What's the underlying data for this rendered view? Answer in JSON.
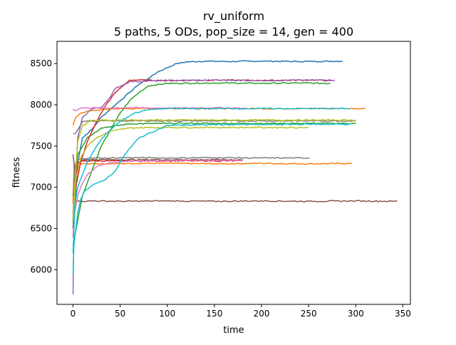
{
  "chart_data": {
    "type": "line",
    "title_line1": "rv_uniform",
    "title_line2": "5 paths, 5 ODs, pop_size = 14, gen = 400",
    "xlabel": "time",
    "ylabel": "fitness",
    "xlim": [
      -17,
      358
    ],
    "ylim": [
      5580,
      8770
    ],
    "xticks": [
      0,
      50,
      100,
      150,
      200,
      250,
      300,
      350
    ],
    "yticks": [
      6000,
      6500,
      7000,
      7500,
      8000,
      8500
    ],
    "grid": false,
    "legend": "none",
    "series": [
      {
        "color": "#1f77b4",
        "x": [
          0,
          5,
          10,
          20,
          30,
          40,
          50,
          60,
          70,
          80,
          90,
          100,
          110,
          120,
          140,
          160,
          200,
          240,
          286
        ],
        "y": [
          6400,
          7300,
          7600,
          7700,
          7850,
          7950,
          8050,
          8150,
          8250,
          8320,
          8400,
          8450,
          8500,
          8520,
          8530,
          8525,
          8530,
          8525,
          8530
        ]
      },
      {
        "color": "#ff7f0e",
        "x": [
          0,
          1,
          3,
          5,
          10,
          20,
          40,
          60,
          100,
          150,
          200,
          250,
          296
        ],
        "y": [
          6800,
          7250,
          7280,
          7290,
          7285,
          7290,
          7285,
          7290,
          7290,
          7285,
          7290,
          7285,
          7290
        ]
      },
      {
        "color": "#ff7f0e",
        "x": [
          0,
          3,
          8,
          20,
          40,
          70,
          100,
          150,
          200,
          250,
          310
        ],
        "y": [
          7750,
          7850,
          7900,
          7930,
          7950,
          7955,
          7955,
          7955,
          7955,
          7955,
          7955
        ]
      },
      {
        "color": "#2ca02c",
        "x": [
          0,
          5,
          10,
          20,
          30,
          40,
          50,
          60,
          70,
          80,
          100,
          150,
          200,
          240,
          273
        ],
        "y": [
          6300,
          6600,
          6900,
          7200,
          7500,
          7700,
          7900,
          8050,
          8150,
          8230,
          8260,
          8265,
          8260,
          8265,
          8260
        ]
      },
      {
        "color": "#2ca02c",
        "x": [
          0,
          5,
          15,
          30,
          60,
          100,
          150,
          200,
          250,
          300
        ],
        "y": [
          6900,
          7400,
          7600,
          7720,
          7770,
          7775,
          7775,
          7775,
          7775,
          7775
        ]
      },
      {
        "color": "#d62728",
        "x": [
          0,
          3,
          8,
          15,
          25,
          35,
          45,
          55,
          60,
          70,
          100,
          150,
          200,
          250,
          275
        ],
        "y": [
          6700,
          7000,
          7300,
          7550,
          7800,
          8000,
          8150,
          8250,
          8300,
          8300,
          8295,
          8300,
          8295,
          8300,
          8295
        ]
      },
      {
        "color": "#d62728",
        "x": [
          0,
          2,
          5,
          10,
          20,
          50,
          100,
          150,
          180
        ],
        "y": [
          6500,
          7000,
          7300,
          7320,
          7320,
          7320,
          7320,
          7320,
          7320
        ]
      },
      {
        "color": "#9467bd",
        "x": [
          0,
          1,
          2,
          5,
          10,
          20,
          30,
          40,
          45,
          60,
          100,
          150,
          200,
          250,
          278
        ],
        "y": [
          5700,
          6600,
          6900,
          7600,
          7850,
          7950,
          7970,
          8100,
          8200,
          8280,
          8295,
          8300,
          8295,
          8300,
          8300
        ]
      },
      {
        "color": "#8c564b",
        "x": [
          0,
          1,
          3,
          5,
          10,
          20,
          50,
          100,
          150,
          200,
          250,
          300,
          344
        ],
        "y": [
          6600,
          7000,
          6850,
          6830,
          6830,
          6835,
          6830,
          6835,
          6830,
          6835,
          6830,
          6835,
          6830
        ]
      },
      {
        "color": "#8c564b",
        "x": [
          0,
          2,
          5,
          10,
          15,
          50,
          100,
          150,
          180
        ],
        "y": [
          7400,
          7200,
          7300,
          7330,
          7335,
          7335,
          7335,
          7335,
          7335
        ]
      },
      {
        "color": "#e377c2",
        "x": [
          0,
          1,
          3,
          5,
          8,
          15,
          30,
          60,
          100,
          150,
          180
        ],
        "y": [
          7950,
          7935,
          7930,
          7940,
          7960,
          7965,
          7960,
          7965,
          7960,
          7965,
          7960
        ]
      },
      {
        "color": "#e377c2",
        "x": [
          0,
          2,
          5,
          10,
          15,
          25,
          40,
          60,
          100,
          150,
          180
        ],
        "y": [
          6400,
          6700,
          6900,
          7050,
          7150,
          7250,
          7300,
          7320,
          7325,
          7325,
          7325
        ]
      },
      {
        "color": "#7f7f7f",
        "x": [
          0,
          1,
          3,
          6,
          10,
          20,
          40,
          60,
          100,
          150,
          200,
          250,
          251
        ],
        "y": [
          6500,
          7100,
          7300,
          7340,
          7350,
          7355,
          7355,
          7360,
          7355,
          7360,
          7355,
          7355,
          7355
        ]
      },
      {
        "color": "#7f7f7f",
        "x": [
          0,
          3,
          10,
          20,
          50,
          100,
          150,
          200,
          250,
          300
        ],
        "y": [
          7650,
          7660,
          7800,
          7805,
          7805,
          7805,
          7805,
          7805,
          7805,
          7805
        ]
      },
      {
        "color": "#bcbd22",
        "x": [
          0,
          3,
          8,
          15,
          25,
          40,
          60,
          80,
          100,
          150,
          200,
          250
        ],
        "y": [
          6600,
          7100,
          7350,
          7500,
          7600,
          7680,
          7720,
          7725,
          7725,
          7725,
          7725,
          7725
        ]
      },
      {
        "color": "#bcbd22",
        "x": [
          0,
          5,
          10,
          20,
          50,
          100,
          150,
          200,
          250,
          300
        ],
        "y": [
          6700,
          7550,
          7750,
          7810,
          7815,
          7815,
          7815,
          7815,
          7815,
          7815
        ]
      },
      {
        "color": "#17becf",
        "x": [
          0,
          1,
          3,
          5,
          8,
          12,
          18,
          25,
          35,
          45,
          55,
          70,
          100,
          150,
          200,
          250,
          295
        ],
        "y": [
          5950,
          6300,
          6500,
          6700,
          6850,
          6950,
          7000,
          7050,
          7100,
          7200,
          7400,
          7600,
          7750,
          7760,
          7760,
          7765,
          7765
        ]
      },
      {
        "color": "#17becf",
        "x": [
          0,
          2,
          5,
          10,
          15,
          25,
          35,
          50,
          65,
          80,
          90,
          100,
          150,
          200,
          250,
          294
        ],
        "y": [
          6200,
          6800,
          7000,
          7150,
          7300,
          7500,
          7650,
          7800,
          7900,
          7940,
          7950,
          7955,
          7955,
          7955,
          7955,
          7955
        ]
      }
    ]
  }
}
